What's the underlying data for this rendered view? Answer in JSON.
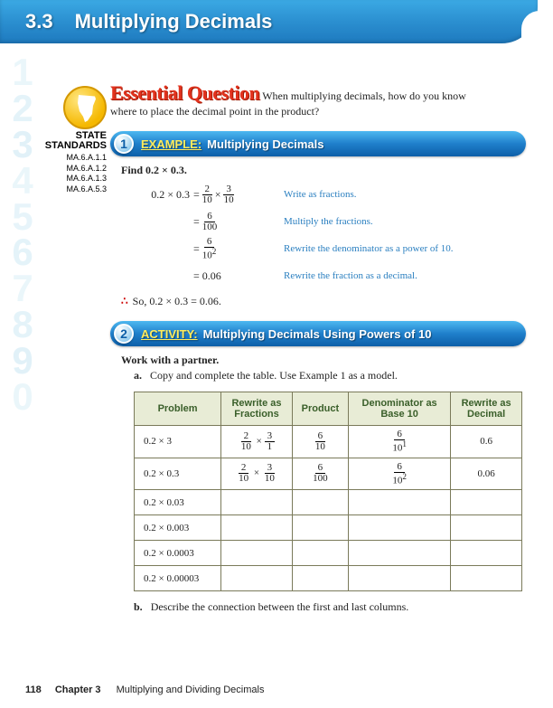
{
  "header": {
    "number": "3.3",
    "title": "Multiplying Decimals"
  },
  "bg_numbers": [
    {
      "t": "1",
      "c": "#8fd0e8"
    },
    {
      "t": "2",
      "c": "#6fc0e0"
    },
    {
      "t": "3",
      "c": "#5fb8dd"
    },
    {
      "t": "4",
      "c": "#8fd0e8"
    },
    {
      "t": "5",
      "c": "#7fc8e4"
    },
    {
      "t": "6",
      "c": "#6fc0e0"
    },
    {
      "t": "7",
      "c": "#8fd0e8"
    },
    {
      "t": "8",
      "c": "#6fc0e0"
    },
    {
      "t": "9",
      "c": "#5fb8dd"
    },
    {
      "t": "0",
      "c": "#8fd0e8"
    }
  ],
  "standards": {
    "state": "STATE",
    "label": "STANDARDS",
    "items": [
      "MA.6.A.1.1",
      "MA.6.A.1.2",
      "MA.6.A.1.3",
      "MA.6.A.5.3"
    ]
  },
  "eq": {
    "label": "Essential Question",
    "text1": "When multiplying decimals, how do you know",
    "text2": "where to place the decimal point in the product?"
  },
  "ex1": {
    "num": "1",
    "label": "EXAMPLE:",
    "title": "Multiplying Decimals",
    "find": "Find 0.2 × 0.3.",
    "rows": [
      {
        "left": "0.2 × 0.3",
        "eq_html": "= <span class='frac'><span class='n'>2</span><span class='d'>10</span></span> × <span class='frac'><span class='n'>3</span><span class='d'>10</span></span>",
        "note": "Write as fractions."
      },
      {
        "left": "",
        "eq_html": "= <span class='frac'><span class='n'>6</span><span class='d'>100</span></span>",
        "note": "Multiply the fractions."
      },
      {
        "left": "",
        "eq_html": "= <span class='frac'><span class='n'>6</span><span class='d'>10<sup>2</sup></span></span>",
        "note": "Rewrite the denominator as a power of 10."
      },
      {
        "left": "",
        "eq_html": "= 0.06",
        "note": "Rewrite the fraction as a decimal."
      }
    ],
    "conclude": "So, 0.2 × 0.3 = 0.06."
  },
  "act2": {
    "num": "2",
    "label": "ACTIVITY:",
    "title": "Multiplying Decimals Using Powers of 10",
    "instruct": "Work with a partner.",
    "a_label": "a.",
    "a_text": "Copy and complete the table. Use Example 1 as a model.",
    "b_label": "b.",
    "b_text": "Describe the connection between the first and last columns.",
    "headers": [
      "Problem",
      "Rewrite as Fractions",
      "Product",
      "Denominator as Base 10",
      "Rewrite as Decimal"
    ],
    "rows": [
      {
        "p": "0.2 × 3",
        "f": "<span class='frac'><span class='n'>2</span><span class='d'>10</span></span> × <span class='frac'><span class='n'>3</span><span class='d'>1</span></span>",
        "pr": "<span class='frac'><span class='n'>6</span><span class='d'>10</span></span>",
        "db": "<span class='frac'><span class='n'>6</span><span class='d'>10<sup>1</sup></span></span>",
        "rd": "0.6"
      },
      {
        "p": "0.2 × 0.3",
        "f": "<span class='frac'><span class='n'>2</span><span class='d'>10</span></span> × <span class='frac'><span class='n'>3</span><span class='d'>10</span></span>",
        "pr": "<span class='frac'><span class='n'>6</span><span class='d'>100</span></span>",
        "db": "<span class='frac'><span class='n'>6</span><span class='d'>10<sup>2</sup></span></span>",
        "rd": "0.06"
      },
      {
        "p": "0.2 × 0.03",
        "f": "",
        "pr": "",
        "db": "",
        "rd": ""
      },
      {
        "p": "0.2 × 0.003",
        "f": "",
        "pr": "",
        "db": "",
        "rd": ""
      },
      {
        "p": "0.2 × 0.0003",
        "f": "",
        "pr": "",
        "db": "",
        "rd": ""
      },
      {
        "p": "0.2 × 0.00003",
        "f": "",
        "pr": "",
        "db": "",
        "rd": ""
      }
    ]
  },
  "footer": {
    "page": "118",
    "chapter": "Chapter 3",
    "title": "Multiplying and Dividing Decimals"
  }
}
